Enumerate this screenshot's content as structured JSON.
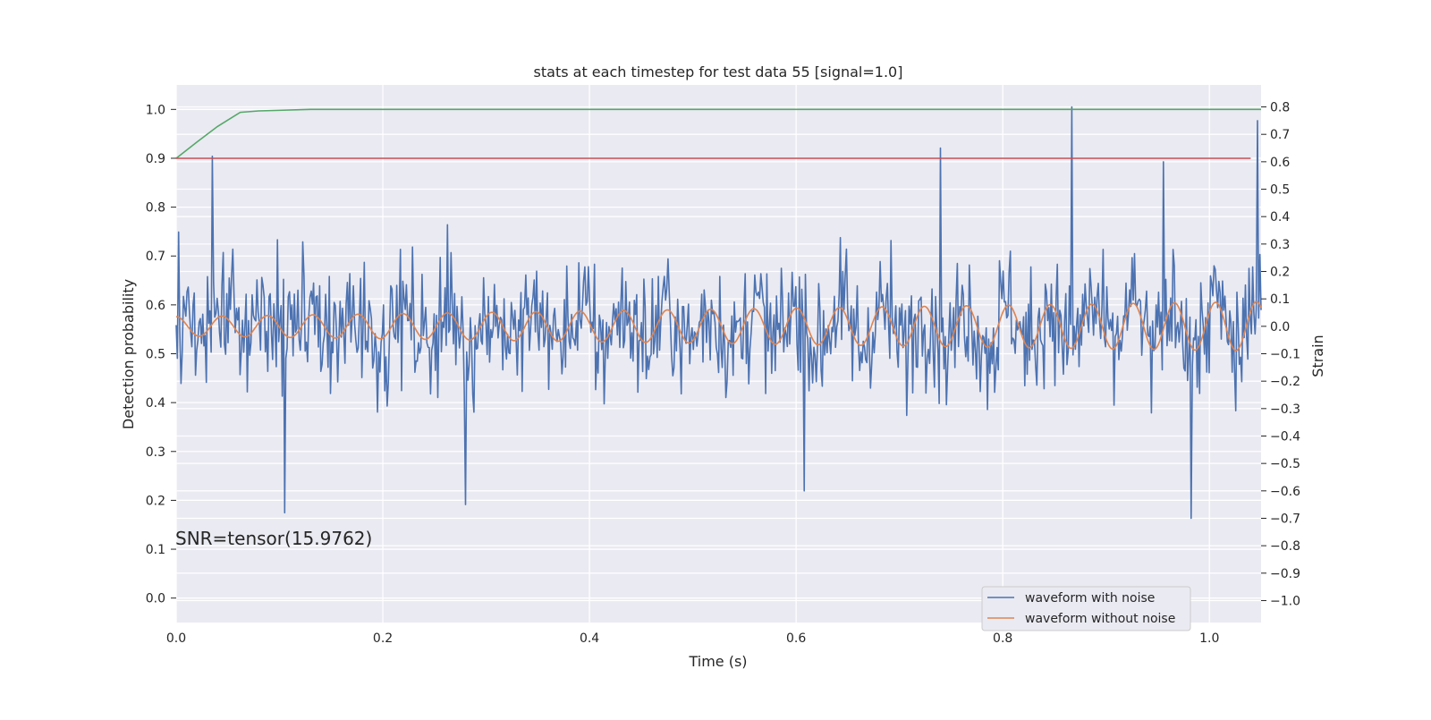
{
  "chart_data": {
    "type": "line",
    "title": "stats at each timestep for test data 55 [signal=1.0]",
    "xlabel": "Time (s)",
    "ylabel": "Detection probability",
    "ylabel_right": "Strain",
    "xlim": [
      0.0,
      1.05
    ],
    "ylim_left": [
      -0.05,
      1.05
    ],
    "ylim_right": [
      -1.08,
      0.88
    ],
    "x_ticks": [
      0.0,
      0.2,
      0.4,
      0.6,
      0.8,
      1.0
    ],
    "x_tick_labels": [
      "0.0",
      "0.2",
      "0.4",
      "0.6",
      "0.8",
      "1.0"
    ],
    "y_ticks_left": [
      0.0,
      0.1,
      0.2,
      0.3,
      0.4,
      0.5,
      0.6,
      0.7,
      0.8,
      0.9,
      1.0
    ],
    "y_tick_labels_left": [
      "0.0",
      "0.1",
      "0.2",
      "0.3",
      "0.4",
      "0.5",
      "0.6",
      "0.7",
      "0.8",
      "0.9",
      "1.0"
    ],
    "y_ticks_right": [
      -1.0,
      -0.9,
      -0.8,
      -0.7,
      -0.6,
      -0.5,
      -0.4,
      -0.3,
      -0.2,
      -0.1,
      0.0,
      0.1,
      0.2,
      0.3,
      0.4,
      0.5,
      0.6,
      0.7,
      0.8
    ],
    "y_tick_labels_right": [
      "−1.0",
      "−0.9",
      "−0.8",
      "−0.7",
      "−0.6",
      "−0.5",
      "−0.4",
      "−0.3",
      "−0.2",
      "−0.1",
      "0.0",
      "0.1",
      "0.2",
      "0.3",
      "0.4",
      "0.5",
      "0.6",
      "0.7",
      "0.8"
    ],
    "grid": true,
    "background": "#eaeaf2",
    "annotation": "SNR=tensor(15.9762)",
    "legend_position": "lower-right",
    "series": [
      {
        "name": "waveform with noise",
        "axis": "right",
        "color": "#4c72b0",
        "description_noise_std": 0.21,
        "points": 900,
        "peaks": [
          [
            0.035,
            0.62
          ],
          [
            0.74,
            0.65
          ],
          [
            0.867,
            0.8
          ],
          [
            0.955,
            0.6
          ],
          [
            1.047,
            0.75
          ],
          [
            0.105,
            -0.68
          ],
          [
            0.28,
            -0.65
          ],
          [
            0.608,
            -0.6
          ],
          [
            0.982,
            -0.7
          ]
        ]
      },
      {
        "name": "waveform without noise",
        "axis": "right",
        "color": "#dd8452",
        "frequency_hz": 22.5,
        "amplitude_start": 0.035,
        "amplitude_end": 0.09
      },
      {
        "axis": "left",
        "color": "#55a868",
        "x": [
          0.0,
          0.02,
          0.04,
          0.062,
          0.08,
          0.13,
          1.05
        ],
        "y": [
          0.9,
          0.933,
          0.965,
          0.994,
          0.997,
          1.0,
          1.0
        ]
      },
      {
        "axis": "left",
        "color": "#c44e52",
        "x": [
          0.0,
          1.04
        ],
        "y": [
          0.9,
          0.9
        ]
      }
    ]
  }
}
